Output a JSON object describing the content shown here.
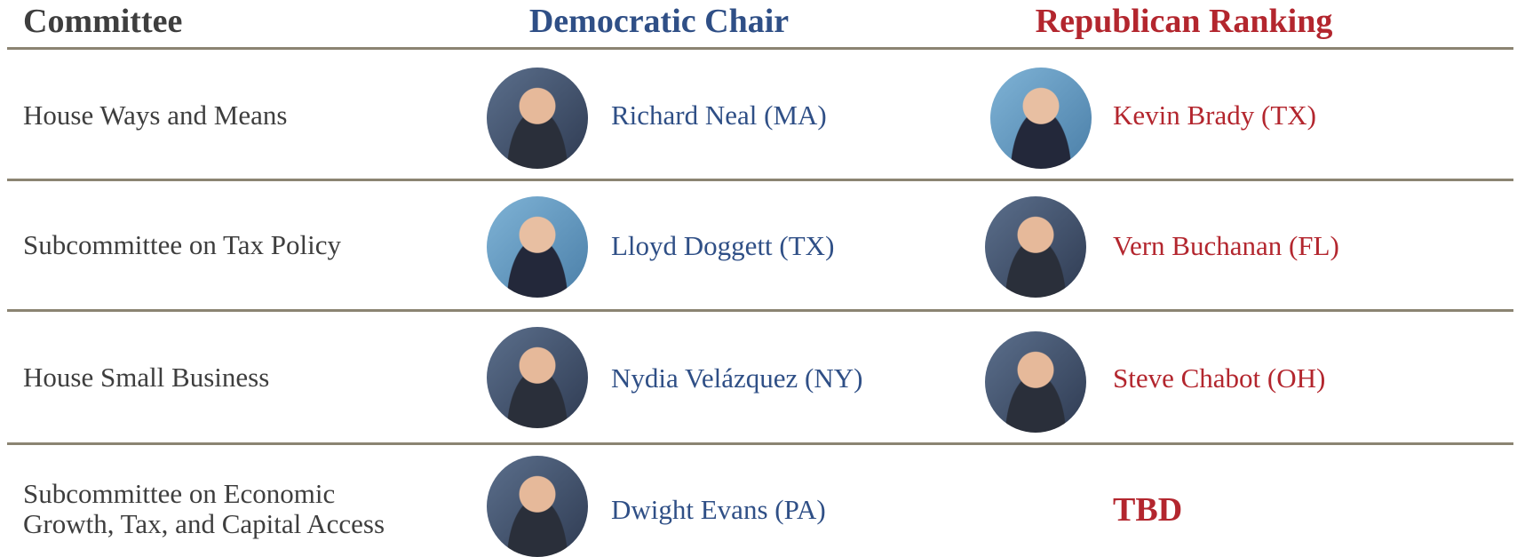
{
  "header": {
    "committee": "Committee",
    "democratic_chair": "Democratic Chair",
    "republican_ranking": "Republican Ranking"
  },
  "table": {
    "rows": [
      {
        "committee": "House Ways and Means",
        "democratic_chair": "Richard Neal (MA)",
        "republican_ranking": "Kevin Brady (TX)"
      },
      {
        "committee": "Subcommittee on Tax Policy",
        "democratic_chair": "Lloyd Doggett (TX)",
        "republican_ranking": "Vern Buchanan (FL)"
      },
      {
        "committee": "House Small Business",
        "democratic_chair": "Nydia Velázquez (NY)",
        "republican_ranking": "Steve Chabot (OH)"
      },
      {
        "committee": "Subcommittee on Economic Growth, Tax, and Capital Access",
        "democratic_chair": "Dwight Evans (PA)",
        "republican_ranking": "TBD"
      }
    ]
  }
}
